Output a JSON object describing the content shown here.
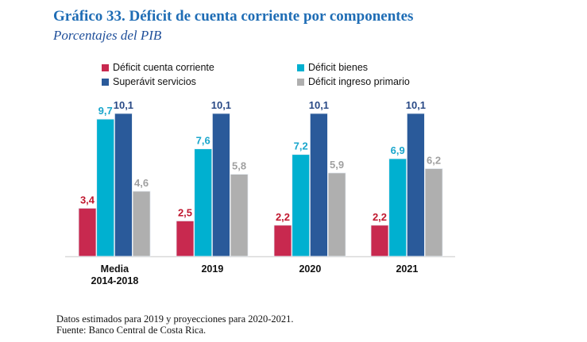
{
  "header": {
    "title": "Gráfico 33. Déficit de cuenta corriente por componentes",
    "subtitle": "Porcentajes del PIB"
  },
  "footnotes": [
    "Datos estimados para 2019 y proyecciones para 2020-2021.",
    "Fuente: Banco Central de Costa Rica."
  ],
  "chart_data": {
    "type": "bar",
    "title": "Gráfico 33. Déficit de cuenta corriente por componentes",
    "subtitle": "Porcentajes del PIB",
    "xlabel": "",
    "ylabel": "",
    "ylim": [
      0,
      10.1
    ],
    "grid": false,
    "legend_position": "top",
    "categories": [
      [
        "Media",
        "2014-2018"
      ],
      [
        "2019"
      ],
      [
        "2020"
      ],
      [
        "2021"
      ]
    ],
    "series": [
      {
        "name": "Déficit cuenta corriente",
        "color": "#C8294F",
        "label_color": "#C0182F",
        "values": [
          3.4,
          2.5,
          2.2,
          2.2
        ],
        "labels": [
          "3,4",
          "2,5",
          "2,2",
          "2,2"
        ]
      },
      {
        "name": "Déficit bienes",
        "color": "#00B0D0",
        "label_color": "#19A6CC",
        "values": [
          9.7,
          7.6,
          7.2,
          6.9
        ],
        "labels": [
          "9,7",
          "7,6",
          "7,2",
          "6,9"
        ]
      },
      {
        "name": "Superávit servicios",
        "color": "#2A5A9A",
        "label_color": "#2A4A86",
        "values": [
          10.1,
          10.1,
          10.1,
          10.1
        ],
        "labels": [
          "10,1",
          "10,1",
          "10,1",
          "10,1"
        ]
      },
      {
        "name": "Déficit ingreso primario",
        "color": "#AFAFAF",
        "label_color": "#A0A0A0",
        "values": [
          4.6,
          5.8,
          5.9,
          6.2
        ],
        "labels": [
          "4,6",
          "5,8",
          "5,9",
          "6,2"
        ]
      }
    ]
  }
}
